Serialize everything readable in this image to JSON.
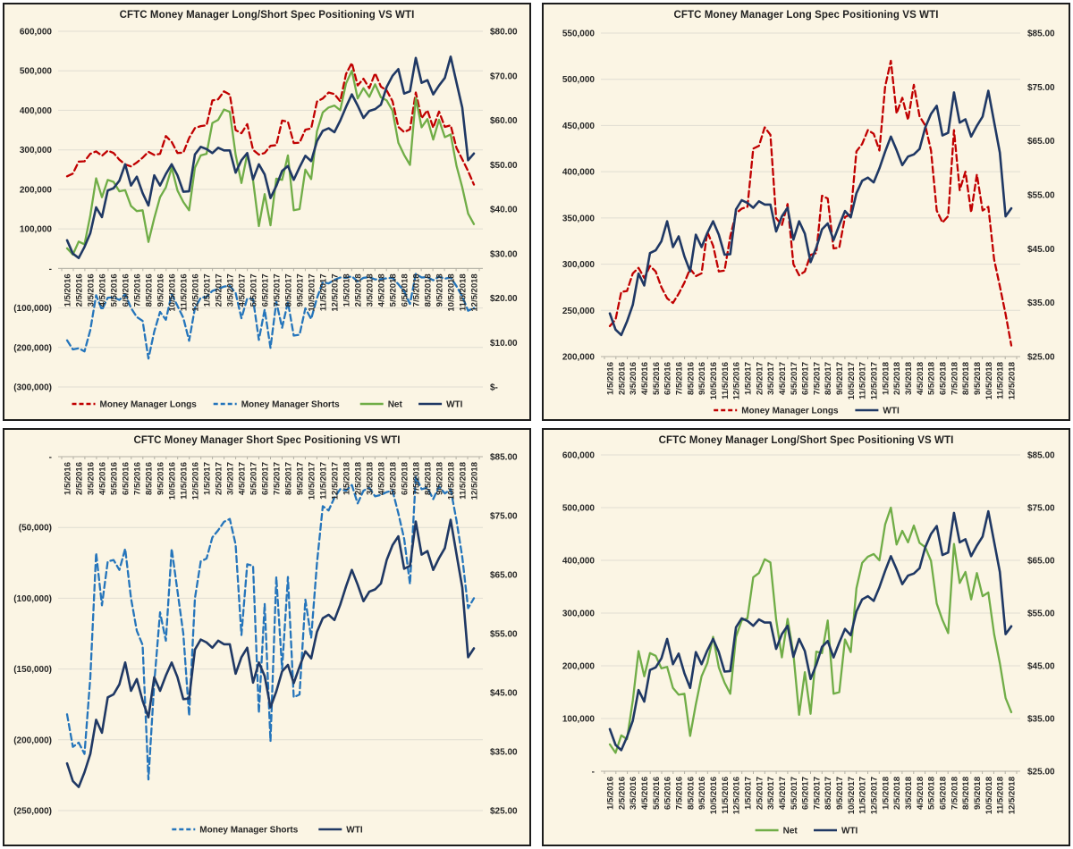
{
  "page": {
    "background": "#ffffff"
  },
  "colors": {
    "panel_bg": "#FBF5E4",
    "panel_border": "#1c1c1c",
    "grid": "#E0DDD2",
    "axis": "#B3B0A4",
    "text": "#262626",
    "longs": "#C00000",
    "shorts": "#2575BB",
    "net": "#70AD47",
    "wti": "#1F3864"
  },
  "chart_data": {
    "type": "line",
    "layout": "2x2-grid",
    "samples_per_month": 2,
    "positions_values_scale": 1000,
    "x_labels": [
      "1/5/2016",
      "2/5/2016",
      "3/5/2016",
      "4/5/2016",
      "5/5/2016",
      "6/5/2016",
      "7/5/2016",
      "8/5/2016",
      "9/5/2016",
      "10/5/2016",
      "11/5/2016",
      "12/5/2016",
      "1/5/2017",
      "2/5/2017",
      "3/5/2017",
      "4/5/2017",
      "5/5/2017",
      "6/5/2017",
      "7/5/2017",
      "8/5/2017",
      "9/5/2017",
      "10/5/2017",
      "11/5/2017",
      "12/5/2017",
      "1/5/2018",
      "2/5/2018",
      "3/5/2018",
      "4/5/2018",
      "5/5/2018",
      "6/5/2018",
      "7/5/2018",
      "8/5/2018",
      "9/5/2018",
      "10/5/2018",
      "11/5/2018",
      "12/5/2018"
    ],
    "series_values": {
      "money_manager_longs": [
        233,
        240,
        270,
        271,
        290,
        296,
        285,
        298,
        292,
        275,
        263,
        258,
        268,
        280,
        295,
        287,
        290,
        335,
        320,
        292,
        293,
        330,
        355,
        360,
        362,
        425,
        428,
        448,
        440,
        350,
        342,
        365,
        300,
        288,
        292,
        310,
        312,
        374,
        371,
        317,
        318,
        351,
        354,
        422,
        430,
        445,
        441,
        423,
        492,
        520,
        463,
        480,
        456,
        494,
        460,
        450,
        423,
        358,
        345,
        352,
        445,
        380,
        400,
        356,
        397,
        358,
        362,
        305,
        276,
        246,
        212
      ],
      "money_manager_shorts": [
        -182,
        -205,
        -202,
        -210,
        -156,
        -68,
        -105,
        -74,
        -73,
        -80,
        -65,
        -100,
        -123,
        -133,
        -228,
        -160,
        -110,
        -130,
        -65,
        -95,
        -125,
        -183,
        -100,
        -74,
        -72,
        -57,
        -52,
        -46,
        -44,
        -62,
        -126,
        -76,
        -77,
        -181,
        -104,
        -201,
        -85,
        -150,
        -85,
        -170,
        -168,
        -101,
        -128,
        -75,
        -35,
        -38,
        -29,
        -23,
        -24,
        -20,
        -33,
        -24,
        -22,
        -28,
        -27,
        -25,
        -24,
        -40,
        -58,
        -90,
        -14,
        -23,
        -22,
        -30,
        -21,
        -26,
        -23,
        -45,
        -71,
        -107,
        -100
      ],
      "net": [
        51,
        35,
        68,
        61,
        134,
        228,
        180,
        224,
        219,
        195,
        198,
        158,
        145,
        147,
        67,
        127,
        180,
        205,
        255,
        197,
        168,
        147,
        255,
        286,
        290,
        368,
        376,
        402,
        396,
        288,
        216,
        289,
        223,
        107,
        188,
        109,
        227,
        224,
        286,
        147,
        150,
        250,
        226,
        347,
        395,
        407,
        412,
        400,
        468,
        500,
        430,
        456,
        434,
        466,
        433,
        425,
        399,
        318,
        287,
        262,
        431,
        357,
        378,
        326,
        376,
        332,
        339,
        260,
        205,
        139,
        112
      ],
      "wti_usd": [
        33.0,
        30.0,
        29.0,
        31.5,
        34.6,
        40.4,
        38.2,
        44.2,
        44.7,
        46.4,
        50.1,
        45.3,
        47.3,
        43.6,
        40.8,
        47.6,
        45.3,
        47.9,
        50.1,
        47.6,
        43.9,
        44.0,
        52.3,
        54.0,
        53.5,
        52.6,
        53.8,
        53.2,
        53.2,
        48.2,
        51.0,
        52.6,
        46.7,
        50.1,
        47.8,
        42.5,
        45.2,
        48.6,
        49.7,
        46.6,
        49.4,
        52.0,
        50.8,
        55.3,
        57.6,
        58.2,
        57.3,
        59.9,
        63.0,
        65.8,
        63.3,
        60.5,
        62.1,
        62.5,
        63.5,
        67.5,
        70.0,
        71.5,
        66.0,
        66.5,
        74.0,
        68.4,
        69.0,
        65.8,
        67.8,
        69.5,
        74.3,
        68.5,
        62.8,
        51.0,
        52.5
      ]
    },
    "charts": [
      {
        "id": "top-left",
        "title": "CFTC Money Manager Long/Short Spec Positioning VS WTI",
        "left_axis": {
          "max": 600,
          "min": -300,
          "tick_labels": [
            "600,000",
            "500,000",
            "400,000",
            "300,000",
            "200,000",
            "100,000",
            "-",
            "(100,000)",
            "(200,000)",
            "(300,000)"
          ]
        },
        "right_axis": {
          "max": 80,
          "min": 0,
          "tick_labels": [
            "$80.00",
            "$70.00",
            "$60.00",
            "$50.00",
            "$40.00",
            "$30.00",
            "$20.00",
            "$10.00",
            "$-"
          ]
        },
        "x_axis_position": "zero-line",
        "series": [
          {
            "key": "money_manager_longs",
            "label": "Money Manager Longs",
            "color_key": "longs",
            "dashed": true,
            "axis": "left"
          },
          {
            "key": "money_manager_shorts",
            "label": "Money Manager Shorts",
            "color_key": "shorts",
            "dashed": true,
            "axis": "left"
          },
          {
            "key": "net",
            "label": "Net",
            "color_key": "net",
            "dashed": false,
            "axis": "left"
          },
          {
            "key": "wti_usd",
            "label": "WTI",
            "color_key": "wti",
            "dashed": false,
            "axis": "right"
          }
        ]
      },
      {
        "id": "top-right",
        "title": "CFTC Money Manager Long Spec Positioning VS WTI",
        "left_axis": {
          "max": 550,
          "min": 200,
          "tick_labels": [
            "550,000",
            "500,000",
            "450,000",
            "400,000",
            "350,000",
            "300,000",
            "250,000",
            "200,000"
          ]
        },
        "right_axis": {
          "max": 85,
          "min": 25,
          "tick_labels": [
            "$85.00",
            "$75.00",
            "$65.00",
            "$55.00",
            "$45.00",
            "$35.00",
            "$25.00"
          ]
        },
        "x_axis_position": "bottom",
        "series": [
          {
            "key": "money_manager_longs",
            "label": "Money Manager Longs",
            "color_key": "longs",
            "dashed": true,
            "axis": "left"
          },
          {
            "key": "wti_usd",
            "label": "WTI",
            "color_key": "wti",
            "dashed": false,
            "axis": "right"
          }
        ]
      },
      {
        "id": "bottom-left",
        "title": "CFTC Money Manager Short Spec Positioning VS WTI",
        "left_axis": {
          "max": 0,
          "min": -250,
          "tick_labels": [
            "-",
            "(50,000)",
            "(100,000)",
            "(150,000)",
            "(200,000)",
            "(250,000)"
          ]
        },
        "right_axis": {
          "max": 85,
          "min": 25,
          "tick_labels": [
            "$85.00",
            "$75.00",
            "$65.00",
            "$55.00",
            "$45.00",
            "$35.00",
            "$25.00"
          ]
        },
        "x_axis_position": "top",
        "series": [
          {
            "key": "money_manager_shorts",
            "label": "Money Manager Shorts",
            "color_key": "shorts",
            "dashed": true,
            "axis": "left"
          },
          {
            "key": "wti_usd",
            "label": "WTI",
            "color_key": "wti",
            "dashed": false,
            "axis": "right"
          }
        ]
      },
      {
        "id": "bottom-right",
        "title": "CFTC Money Manager Long/Short Spec Positioning VS WTI",
        "left_axis": {
          "max": 600,
          "min": 0,
          "tick_labels": [
            "600,000",
            "500,000",
            "400,000",
            "300,000",
            "200,000",
            "100,000",
            "-"
          ]
        },
        "right_axis": {
          "max": 85,
          "min": 25,
          "tick_labels": [
            "$85.00",
            "$75.00",
            "$65.00",
            "$55.00",
            "$45.00",
            "$35.00",
            "$25.00"
          ]
        },
        "x_axis_position": "bottom",
        "series": [
          {
            "key": "net",
            "label": "Net",
            "color_key": "net",
            "dashed": false,
            "axis": "left"
          },
          {
            "key": "wti_usd",
            "label": "WTI",
            "color_key": "wti",
            "dashed": false,
            "axis": "right"
          }
        ]
      }
    ]
  }
}
